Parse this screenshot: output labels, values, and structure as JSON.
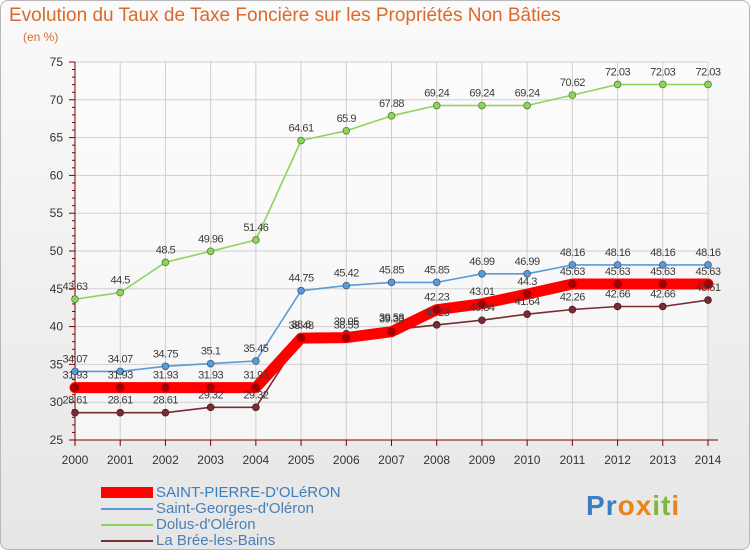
{
  "header": {
    "title": "Evolution du Taux de Taxe Foncière sur les Propriétés Non Bâties",
    "unit": "(en %)"
  },
  "brand": {
    "text": "Proxiti",
    "letters": [
      "P",
      "r",
      "o",
      "x",
      "i",
      "t",
      "i"
    ],
    "colors": [
      "#3a7fc1",
      "#3a7fc1",
      "#e8841a",
      "#e8841a",
      "#7bb83b",
      "#7bb83b",
      "#e8841a"
    ]
  },
  "chart_data": {
    "type": "line",
    "title": "Evolution du Taux de Taxe Foncière sur les Propriétés Non Bâties",
    "ylabel": "(en %)",
    "xlabel": "",
    "ylim": [
      25,
      75
    ],
    "yticks": [
      "25",
      "30",
      "35",
      "40",
      "45",
      "50",
      "55",
      "60",
      "65",
      "70",
      "75"
    ],
    "categories": [
      "2000",
      "2001",
      "2002",
      "2003",
      "2004",
      "2005",
      "2006",
      "2007",
      "2008",
      "2009",
      "2010",
      "2011",
      "2012",
      "2013",
      "2014"
    ],
    "grid": true,
    "legend_position": "bottom-left",
    "series": [
      {
        "name": "SAINT-PIERRE-D'OLéRON",
        "color": "#ff0000",
        "highlight": true,
        "values": [
          31.93,
          31.93,
          31.93,
          31.93,
          31.93,
          38.48,
          38.55,
          39.33,
          42.23,
          43.01,
          44.3,
          45.63,
          45.63,
          45.63,
          45.63
        ],
        "labels": [
          "31.93",
          "31.93",
          "31.93",
          "31.93",
          "31.93",
          "38.48",
          "38.55",
          "39.33",
          "42.23",
          "43.01",
          "44.3",
          "45.63",
          "45.63",
          "45.63",
          "45.63"
        ]
      },
      {
        "name": "Saint-Georges-d'Oléron",
        "color": "#5b9bd5",
        "highlight": false,
        "values": [
          34.07,
          34.07,
          34.75,
          35.1,
          35.45,
          44.75,
          45.42,
          45.85,
          45.85,
          46.99,
          46.99,
          48.16,
          48.16,
          48.16,
          48.16
        ],
        "labels": [
          "34.07",
          "34.07",
          "34.75",
          "35.1",
          "35.45",
          "44.75",
          "45.42",
          "45.85",
          "45.85",
          "46.99",
          "46.99",
          "48.16",
          "48.16",
          "48.16",
          "48.16"
        ]
      },
      {
        "name": "Dolus-d'Oléron",
        "color": "#8dd45a",
        "highlight": false,
        "values": [
          43.63,
          44.5,
          48.5,
          49.96,
          51.46,
          64.61,
          65.9,
          67.88,
          69.24,
          69.24,
          69.24,
          70.62,
          72.03,
          72.03,
          72.03
        ],
        "labels": [
          "43.63",
          "44.5",
          "48.5",
          "49.96",
          "51.46",
          "64.61",
          "65.9",
          "67.88",
          "69.24",
          "69.24",
          "69.24",
          "70.62",
          "72.03",
          "72.03",
          "72.03"
        ]
      },
      {
        "name": "La Brée-les-Bains",
        "color": "#7a2c33",
        "highlight": false,
        "values": [
          28.61,
          28.61,
          28.61,
          29.32,
          29.32,
          38.6,
          39.05,
          39.58,
          40.23,
          40.84,
          41.64,
          42.26,
          42.66,
          42.66,
          43.51
        ],
        "labels": [
          "28.61",
          "28.61",
          "28.61",
          "29.32",
          "29.32",
          "38.6",
          "39.05",
          "39.58",
          "40.23",
          "40.84",
          "41.64",
          "42.26",
          "42.66",
          "42.66",
          "43.51"
        ]
      }
    ]
  }
}
